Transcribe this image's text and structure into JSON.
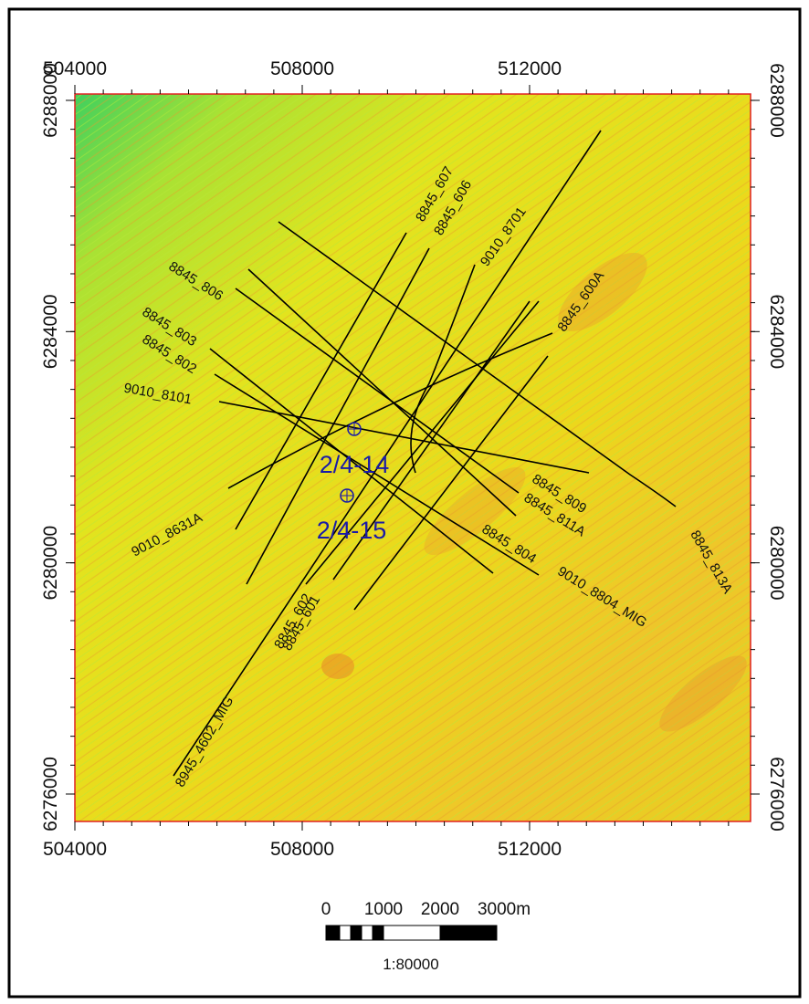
{
  "map": {
    "xlim": [
      504000,
      515888
    ],
    "ylim": [
      6275526,
      6288110
    ],
    "xticks": [
      504000,
      508000,
      512000
    ],
    "yticks": [
      6276000,
      6280000,
      6284000,
      6288000
    ]
  },
  "seismic_lines": [
    "8845_607",
    "8845_606",
    "9010_8701",
    "8845_600A",
    "8845_806",
    "8845_803",
    "8845_802",
    "9010_8101",
    "9010_8631A",
    "8845_809",
    "8845_811A",
    "8845_804",
    "9010_8804_MIG",
    "8845_813A",
    "8845_602",
    "8845_601",
    "8945_4602_MIG"
  ],
  "wells": [
    "2/4-14",
    "2/4-15"
  ],
  "scale_bar": {
    "labels": [
      "0",
      "1000",
      "2000",
      "3000m"
    ],
    "ratio": "1:80000"
  }
}
